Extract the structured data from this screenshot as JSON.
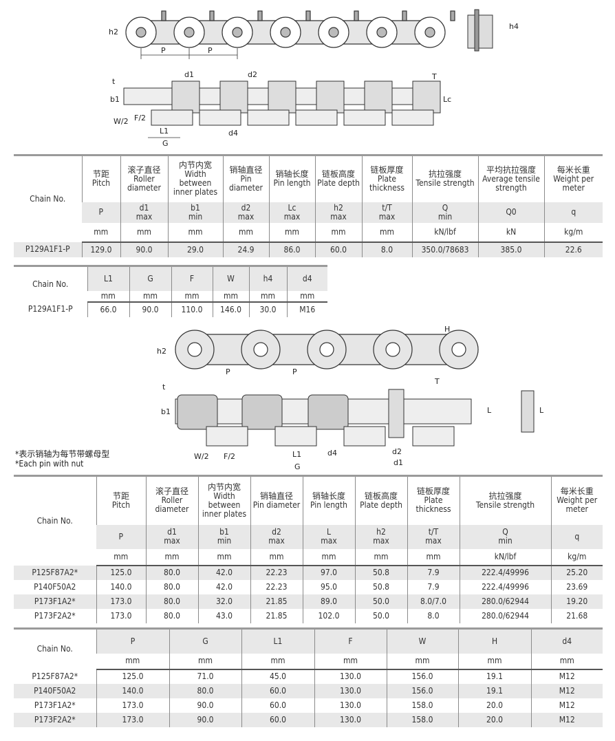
{
  "diagram1": {
    "labels": {
      "h2": "h2",
      "P1": "P",
      "P2": "P",
      "h4": "h4",
      "t": "t",
      "T": "T",
      "b1": "b1",
      "d1": "d1",
      "d2": "d2",
      "Lc": "Lc",
      "W2": "W/2",
      "F2": "F/2",
      "L1": "L1",
      "G": "G",
      "d4": "d4"
    }
  },
  "table1": {
    "chain_no": "Chain No.",
    "headers": [
      {
        "cn": "节距",
        "en": "Pitch",
        "sym": "P",
        "sub": "",
        "unit": "mm"
      },
      {
        "cn": "滚子直径",
        "en": "Roller diameter",
        "sym": "d1",
        "sub": "max",
        "unit": "mm"
      },
      {
        "cn": "内节内宽",
        "en": "Width between inner plates",
        "sym": "b1",
        "sub": "min",
        "unit": "mm"
      },
      {
        "cn": "销轴直径",
        "en": "Pin diameter",
        "sym": "d2",
        "sub": "max",
        "unit": "mm"
      },
      {
        "cn": "销轴长度",
        "en": "Pin length",
        "sym": "Lc",
        "sub": "max",
        "unit": "mm"
      },
      {
        "cn": "链板高度",
        "en": "Plate depth",
        "sym": "h2",
        "sub": "max",
        "unit": "mm"
      },
      {
        "cn": "链板厚度",
        "en": "Plate thickness",
        "sym": "t/T",
        "sub": "max",
        "unit": "mm"
      },
      {
        "cn": "抗拉强度",
        "en": "Tensile strength",
        "sym": "Q",
        "sub": "min",
        "unit": "kN/lbf"
      },
      {
        "cn": "平均抗拉强度",
        "en": "Average tensile strength",
        "sym": "Q0",
        "sub": "",
        "unit": "kN"
      },
      {
        "cn": "每米长重",
        "en": "Weight per meter",
        "sym": "q",
        "sub": "",
        "unit": "kg/m"
      }
    ],
    "rows": [
      [
        "P129A1F1-P",
        "129.0",
        "90.0",
        "29.0",
        "24.9",
        "86.0",
        "60.0",
        "8.0",
        "350.0/78683",
        "385.0",
        "22.6"
      ]
    ]
  },
  "table2": {
    "chain_no": "Chain No.",
    "headers": [
      {
        "sym": "L1",
        "unit": "mm"
      },
      {
        "sym": "G",
        "unit": "mm"
      },
      {
        "sym": "F",
        "unit": "mm"
      },
      {
        "sym": "W",
        "unit": "mm"
      },
      {
        "sym": "h4",
        "unit": "mm"
      },
      {
        "sym": "d4",
        "unit": "mm"
      }
    ],
    "rows": [
      [
        "P129A1F1-P",
        "66.0",
        "90.0",
        "110.0",
        "146.0",
        "30.0",
        "M16"
      ]
    ]
  },
  "diagram2": {
    "labels": {
      "h2": "h2",
      "H": "H",
      "P1": "P",
      "P2": "P",
      "t": "t",
      "T": "T",
      "b1": "b1",
      "L": "L",
      "L2": "L",
      "W2": "W/2",
      "F2": "F/2",
      "L1": "L1",
      "G": "G",
      "d4": "d4",
      "d2": "d2",
      "d1": "d1"
    }
  },
  "notes": {
    "cn": "*表示销轴为每节带螺母型",
    "en": "*Each pin with nut"
  },
  "table3": {
    "chain_no": "Chain No.",
    "headers": [
      {
        "cn": "节距",
        "en": "Pitch",
        "sym": "P",
        "sub": "",
        "unit": "mm"
      },
      {
        "cn": "滚子直径",
        "en": "Roller diameter",
        "sym": "d1",
        "sub": "max",
        "unit": "mm"
      },
      {
        "cn": "内节内宽",
        "en": "Width between inner plates",
        "sym": "b1",
        "sub": "min",
        "unit": "mm"
      },
      {
        "cn": "销轴直径",
        "en": "Pin diameter",
        "sym": "d2",
        "sub": "max",
        "unit": "mm"
      },
      {
        "cn": "销轴长度",
        "en": "Pin length",
        "sym": "L",
        "sub": "max",
        "unit": "mm"
      },
      {
        "cn": "链板高度",
        "en": "Plate depth",
        "sym": "h2",
        "sub": "max",
        "unit": "mm"
      },
      {
        "cn": "链板厚度",
        "en": "Plate thickness",
        "sym": "t/T",
        "sub": "max",
        "unit": "mm"
      },
      {
        "cn": "抗拉强度",
        "en": "Tensile strength",
        "sym": "Q",
        "sub": "min",
        "unit": "kN/lbf"
      },
      {
        "cn": "每米长重",
        "en": "Weight per meter",
        "sym": "q",
        "sub": "",
        "unit": "kg/m"
      }
    ],
    "rows": [
      [
        "P125F87A2*",
        "125.0",
        "80.0",
        "42.0",
        "22.23",
        "97.0",
        "50.8",
        "7.9",
        "222.4/49996",
        "25.20"
      ],
      [
        "P140F50A2",
        "140.0",
        "80.0",
        "42.0",
        "22.23",
        "95.0",
        "50.8",
        "7.9",
        "222.4/49996",
        "23.69"
      ],
      [
        "P173F1A2*",
        "173.0",
        "80.0",
        "32.0",
        "21.85",
        "89.0",
        "50.0",
        "8.0/7.0",
        "280.0/62944",
        "19.20"
      ],
      [
        "P173F2A2*",
        "173.0",
        "80.0",
        "43.0",
        "21.85",
        "102.0",
        "50.0",
        "8.0",
        "280.0/62944",
        "21.68"
      ]
    ]
  },
  "table4": {
    "chain_no": "Chain No.",
    "headers": [
      {
        "sym": "P",
        "unit": "mm"
      },
      {
        "sym": "G",
        "unit": "mm"
      },
      {
        "sym": "L1",
        "unit": "mm"
      },
      {
        "sym": "F",
        "unit": "mm"
      },
      {
        "sym": "W",
        "unit": "mm"
      },
      {
        "sym": "H",
        "unit": "mm"
      },
      {
        "sym": "d4",
        "unit": "mm"
      }
    ],
    "rows": [
      [
        "P125F87A2*",
        "125.0",
        "71.0",
        "45.0",
        "130.0",
        "156.0",
        "19.1",
        "M12"
      ],
      [
        "P140F50A2",
        "140.0",
        "80.0",
        "60.0",
        "130.0",
        "156.0",
        "19.1",
        "M12"
      ],
      [
        "P173F1A2*",
        "173.0",
        "90.0",
        "60.0",
        "130.0",
        "158.0",
        "20.0",
        "M12"
      ],
      [
        "P173F2A2*",
        "173.0",
        "90.0",
        "60.0",
        "130.0",
        "158.0",
        "20.0",
        "M12"
      ]
    ]
  }
}
